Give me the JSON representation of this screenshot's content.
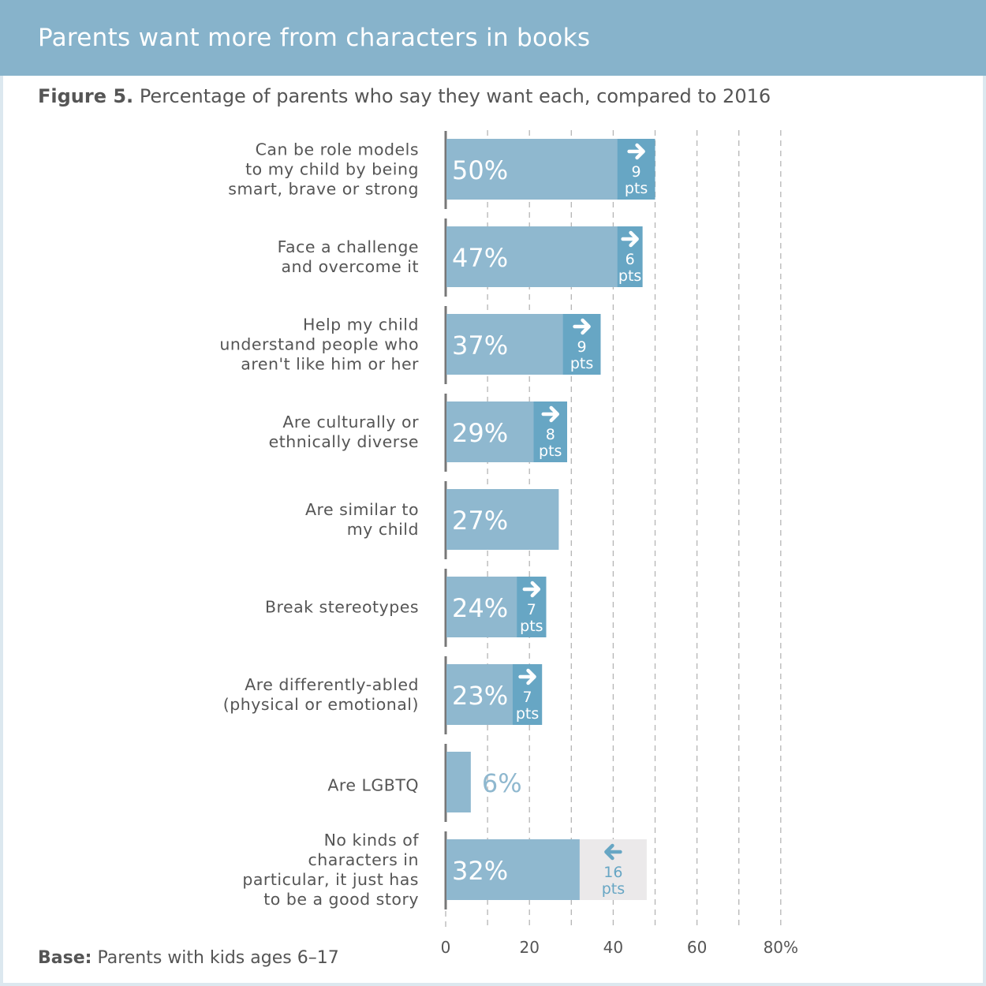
{
  "header": {
    "title": "Parents want more from characters in books"
  },
  "subtitle": {
    "figure": "Figure 5.",
    "text": "Percentage of parents who say they want each, compared to 2016"
  },
  "footer": {
    "base_label": "Base:",
    "base_text": "Parents with kids ages 6–17"
  },
  "colors": {
    "header": "#87b3cb",
    "bar": "#8fb8cf",
    "change_up": "#67a6c4",
    "change_down": "#ebe9ea",
    "text": "#555555"
  },
  "chart_data": {
    "type": "bar",
    "orientation": "horizontal",
    "title": "Percentage of parents who say they want each, compared to 2016",
    "xlim": [
      0,
      80
    ],
    "xticks": [
      0,
      20,
      40,
      60,
      80
    ],
    "xtick_labels": [
      "0",
      "20",
      "40",
      "60",
      "80%"
    ],
    "grid": "dashed vertical every 10",
    "categories": [
      [
        "Can be role models",
        "to my child by being",
        "smart, brave or strong"
      ],
      [
        "Face a challenge",
        "and overcome it"
      ],
      [
        "Help my child",
        "understand people who",
        "aren't like him or her"
      ],
      [
        "Are culturally or",
        "ethnically diverse"
      ],
      [
        "Are similar to",
        "my child"
      ],
      [
        "Break stereotypes"
      ],
      [
        "Are differently-abled",
        "(physical or emotional)"
      ],
      [
        "Are LGBTQ"
      ],
      [
        "No kinds of",
        "characters in",
        "particular, it just has",
        "to be a good story"
      ]
    ],
    "values": [
      50,
      47,
      37,
      29,
      27,
      24,
      23,
      6,
      32
    ],
    "value_labels": [
      "50%",
      "47%",
      "37%",
      "29%",
      "27%",
      "24%",
      "23%",
      "6%",
      "32%"
    ],
    "change_pts": [
      9,
      6,
      9,
      8,
      null,
      7,
      7,
      null,
      -16
    ],
    "change_unit": "pts"
  }
}
